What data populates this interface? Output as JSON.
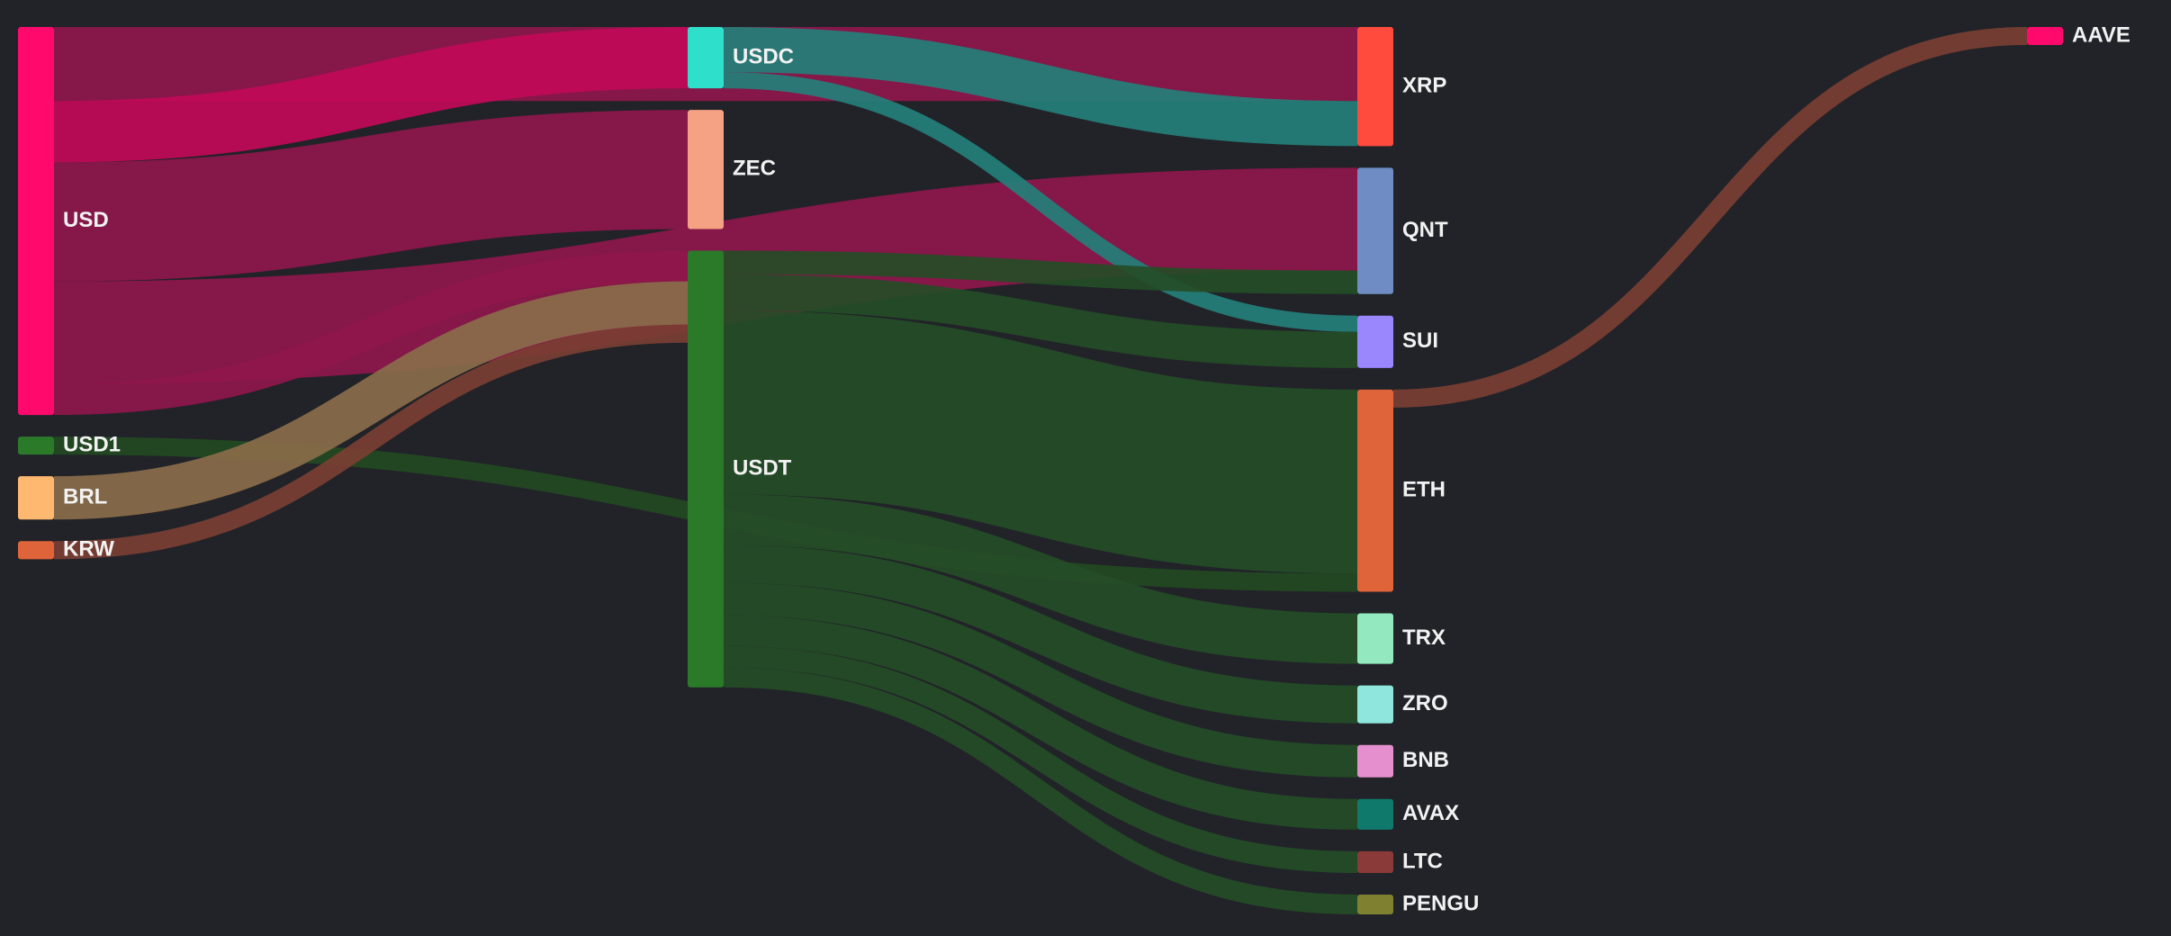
{
  "chart_data": {
    "type": "sankey",
    "nodes": [
      {
        "id": "USD",
        "label": "USD",
        "color": "#ff0a6c"
      },
      {
        "id": "USD1",
        "label": "USD1",
        "color": "#2a7a2a"
      },
      {
        "id": "BRL",
        "label": "BRL",
        "color": "#ffb870"
      },
      {
        "id": "KRW",
        "label": "KRW",
        "color": "#e0643a"
      },
      {
        "id": "USDC",
        "label": "USDC",
        "color": "#2ee0cc"
      },
      {
        "id": "ZEC",
        "label": "ZEC",
        "color": "#f5a184"
      },
      {
        "id": "USDT",
        "label": "USDT",
        "color": "#2a7a2a"
      },
      {
        "id": "XRP",
        "label": "XRP",
        "color": "#ff4b3e"
      },
      {
        "id": "QNT",
        "label": "QNT",
        "color": "#6f8dc4"
      },
      {
        "id": "SUI",
        "label": "SUI",
        "color": "#9a86fd"
      },
      {
        "id": "ETH",
        "label": "ETH",
        "color": "#e0643a"
      },
      {
        "id": "TRX",
        "label": "TRX",
        "color": "#94e8c0"
      },
      {
        "id": "ZRO",
        "label": "ZRO",
        "color": "#8fe6dc"
      },
      {
        "id": "BNB",
        "label": "BNB",
        "color": "#e68fce"
      },
      {
        "id": "AVAX",
        "label": "AVAX",
        "color": "#0f7a6c"
      },
      {
        "id": "LTC",
        "label": "LTC",
        "color": "#8a3a38"
      },
      {
        "id": "PENGU",
        "label": "PENGU",
        "color": "#7f8030"
      },
      {
        "id": "AAVE",
        "label": "AAVE",
        "color": "#ff0a6c"
      }
    ],
    "links": [
      {
        "source": "USD",
        "target": "XRP",
        "value": 82,
        "color": "#8f174c"
      },
      {
        "source": "USD",
        "target": "QNT",
        "value": 114,
        "color": "#8f174c"
      },
      {
        "source": "USD",
        "target": "USDC",
        "value": 68,
        "color": "#c20a58"
      },
      {
        "source": "USD",
        "target": "ZEC",
        "value": 132,
        "color": "#8f174c"
      },
      {
        "source": "USD",
        "target": "USDT",
        "value": 34,
        "color": "#8f174c"
      },
      {
        "source": "USD1",
        "target": "ETH",
        "value": 20,
        "color": "#234a22"
      },
      {
        "source": "BRL",
        "target": "USDT",
        "value": 48,
        "color": "#8a6c4a"
      },
      {
        "source": "KRW",
        "target": "USDT",
        "value": 20,
        "color": "#7b3f33"
      },
      {
        "source": "USDC",
        "target": "XRP",
        "value": 50,
        "color": "#24807b"
      },
      {
        "source": "USDC",
        "target": "SUI",
        "value": 18,
        "color": "#24807b"
      },
      {
        "source": "USDT",
        "target": "QNT",
        "value": 26,
        "color": "#254d27"
      },
      {
        "source": "USDT",
        "target": "SUI",
        "value": 40,
        "color": "#254d27"
      },
      {
        "source": "USDT",
        "target": "ETH",
        "value": 204,
        "color": "#254d27"
      },
      {
        "source": "USDT",
        "target": "TRX",
        "value": 56,
        "color": "#254d27"
      },
      {
        "source": "USDT",
        "target": "ZRO",
        "value": 42,
        "color": "#254d27"
      },
      {
        "source": "USDT",
        "target": "BNB",
        "value": 36,
        "color": "#254d27"
      },
      {
        "source": "USDT",
        "target": "AVAX",
        "value": 34,
        "color": "#254d27"
      },
      {
        "source": "USDT",
        "target": "LTC",
        "value": 24,
        "color": "#254d27"
      },
      {
        "source": "USDT",
        "target": "PENGU",
        "value": 22,
        "color": "#254d27"
      },
      {
        "source": "ETH",
        "target": "AAVE",
        "value": 20,
        "color": "#7b3f33"
      }
    ]
  }
}
